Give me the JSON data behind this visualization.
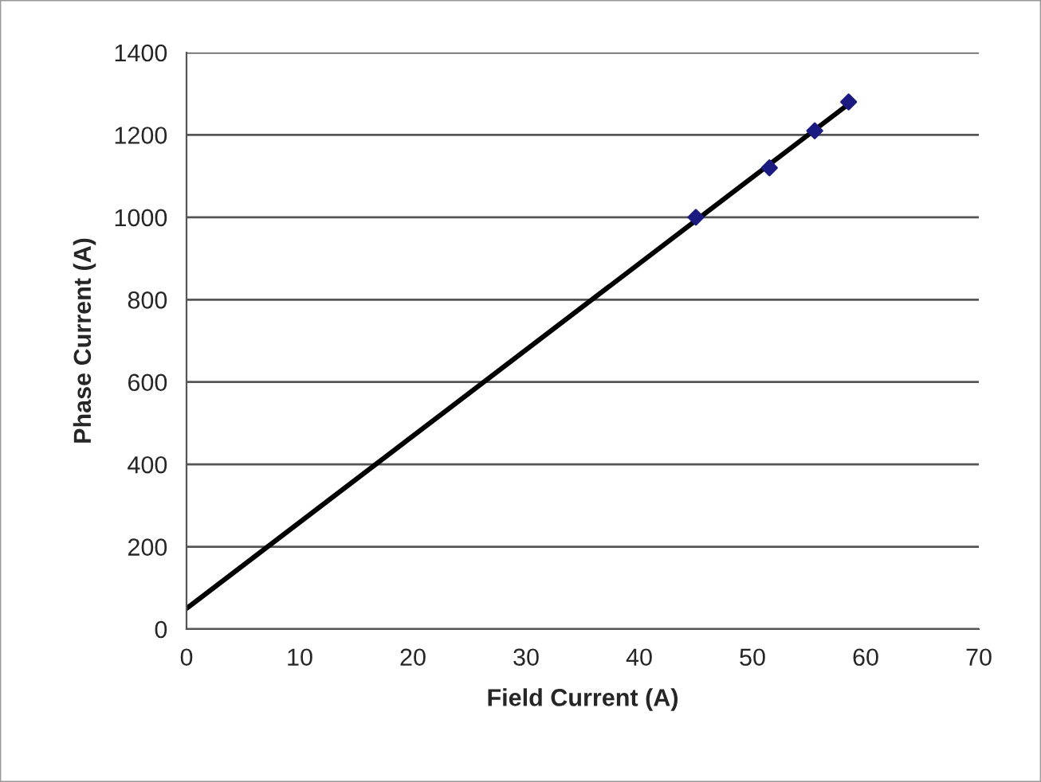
{
  "chart_data": {
    "type": "scatter",
    "xlabel": "Field Current (A)",
    "ylabel": "Phase Current (A)",
    "series": [
      {
        "color": "#1a1a80",
        "marker": "diamond",
        "x": [
          45,
          51.5,
          55.5,
          58.5
        ],
        "values": [
          1000,
          1120,
          1210,
          1280
        ]
      },
      {
        "type": "line",
        "color": "#000000",
        "marker": "none",
        "line_style": "solid",
        "x": [
          0,
          58.5
        ],
        "values": [
          50,
          1275
        ]
      }
    ],
    "xlim": [
      0,
      70
    ],
    "xticks": [
      0,
      10,
      20,
      30,
      40,
      50,
      60,
      70
    ],
    "ylim": [
      0,
      1400
    ],
    "yticks": [
      0,
      200,
      400,
      600,
      800,
      1000,
      1200,
      1400
    ],
    "grid": "y",
    "legend": false
  }
}
